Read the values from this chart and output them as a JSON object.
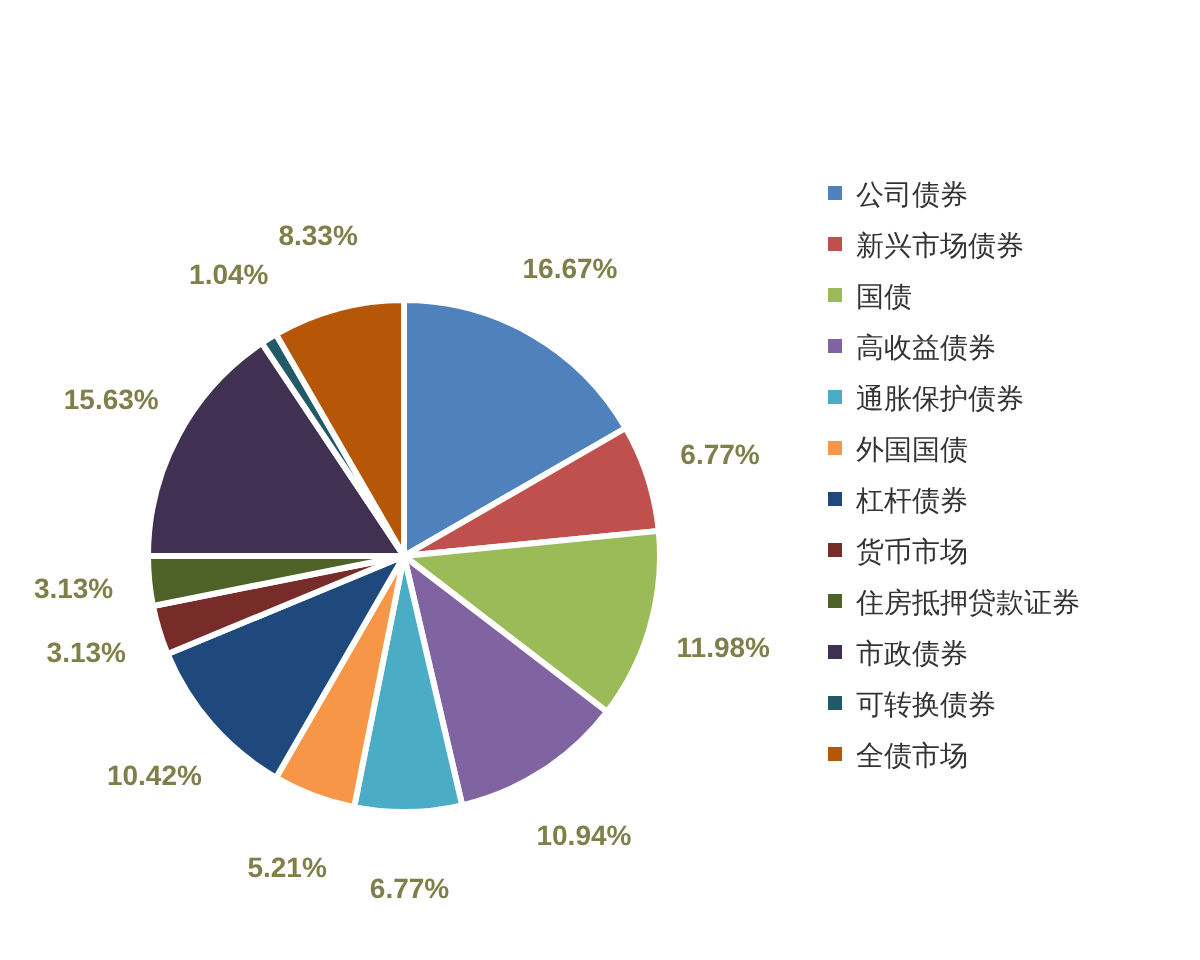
{
  "chart_data": {
    "type": "pie",
    "categories": [
      "公司债券",
      "新兴市场债券",
      "国债",
      "高收益债券",
      "通胀保护债券",
      "外国国债",
      "杠杆债券",
      "货币市场",
      "住房抵押贷款证券",
      "市政债券",
      "可转换债券",
      "全债市场"
    ],
    "values": [
      16.67,
      6.77,
      11.98,
      10.94,
      6.77,
      5.21,
      10.42,
      3.13,
      3.13,
      15.63,
      1.04,
      8.33
    ],
    "colors": [
      "#4f81bd",
      "#c0504d",
      "#9bbb59",
      "#8064a2",
      "#4bacc6",
      "#f79646",
      "#1f497d",
      "#772c2a",
      "#4f6228",
      "#403152",
      "#215968",
      "#b65708"
    ],
    "value_labels": [
      "16.67%",
      "6.77%",
      "11.98%",
      "10.94%",
      "6.77%",
      "5.21%",
      "10.42%",
      "3.13%",
      "3.13%",
      "15.63%",
      "1.04%",
      "8.33%"
    ],
    "legend": "right"
  }
}
